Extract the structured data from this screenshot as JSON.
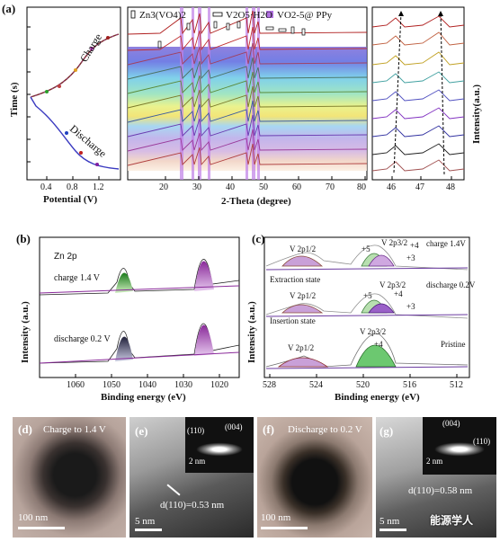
{
  "panels": {
    "a": {
      "label": "(a)",
      "left": {
        "ylabel": "Time (s)",
        "xlabel": "Potential (V)",
        "xticks": [
          "0.4",
          "0.8",
          "1.2"
        ],
        "charge_label": "Charge",
        "discharge_label": "Discharge"
      },
      "mid": {
        "legend_zn": "Zn3(VO4)2",
        "legend_v2o5": "V2O5·H2O",
        "legend_vo2": "VO2-5@ PPy",
        "xlabel": "2-Theta (degree)",
        "xticks": [
          "20",
          "30",
          "40",
          "50",
          "60",
          "70",
          "80"
        ]
      },
      "right": {
        "ylabel": "Intensity(a.u.)",
        "xticks": [
          "46",
          "47",
          "48"
        ]
      }
    },
    "b": {
      "label": "(b)",
      "element": "Zn 2p",
      "curve1": "charge 1.4 V",
      "curve2": "discharge 0.2 V",
      "ylabel": "Intensity (a.u.)",
      "xlabel": "Binding energy (eV)",
      "xticks": [
        "1060",
        "1050",
        "1040",
        "1030",
        "1020"
      ]
    },
    "c": {
      "label": "(c)",
      "ylabel": "Intensity (a.u.)",
      "xlabel": "Binding energy (eV)",
      "xticks": [
        "528",
        "524",
        "520",
        "516",
        "512"
      ],
      "top_peak1": "V 2p1/2",
      "top_peak2": "V 2p3/2",
      "top_state": "charge 1.4V",
      "top_sub": "Extraction state",
      "mid_peak1": "V 2p1/2",
      "mid_peak2": "V 2p3/2",
      "mid_state": "discharge 0.2V",
      "mid_sub": "Insertion state",
      "bot_peak1": "V 2p1/2",
      "bot_peak2": "V 2p3/2",
      "bot_state": "Pristine",
      "plus5": "+5",
      "plus4": "+4",
      "plus3": "+3"
    },
    "d": {
      "label": "(d)",
      "caption": "Charge to 1.4 V",
      "scale": "100 nm"
    },
    "e": {
      "label": "(e)",
      "spot1": "(110)",
      "spot2": "(004)",
      "inset_scale": "2 nm",
      "spacing": "d(110)=0.53 nm",
      "scale": "5 nm"
    },
    "f": {
      "label": "(f)",
      "caption": "Discharge to 0.2 V",
      "scale": "100 nm"
    },
    "g": {
      "label": "(g)",
      "spot1": "(004)",
      "spot2": "(110)",
      "inset_scale": "2 nm",
      "spacing": "d(110)=0.58 nm",
      "scale": "5 nm"
    }
  },
  "watermark": "能源学人"
}
